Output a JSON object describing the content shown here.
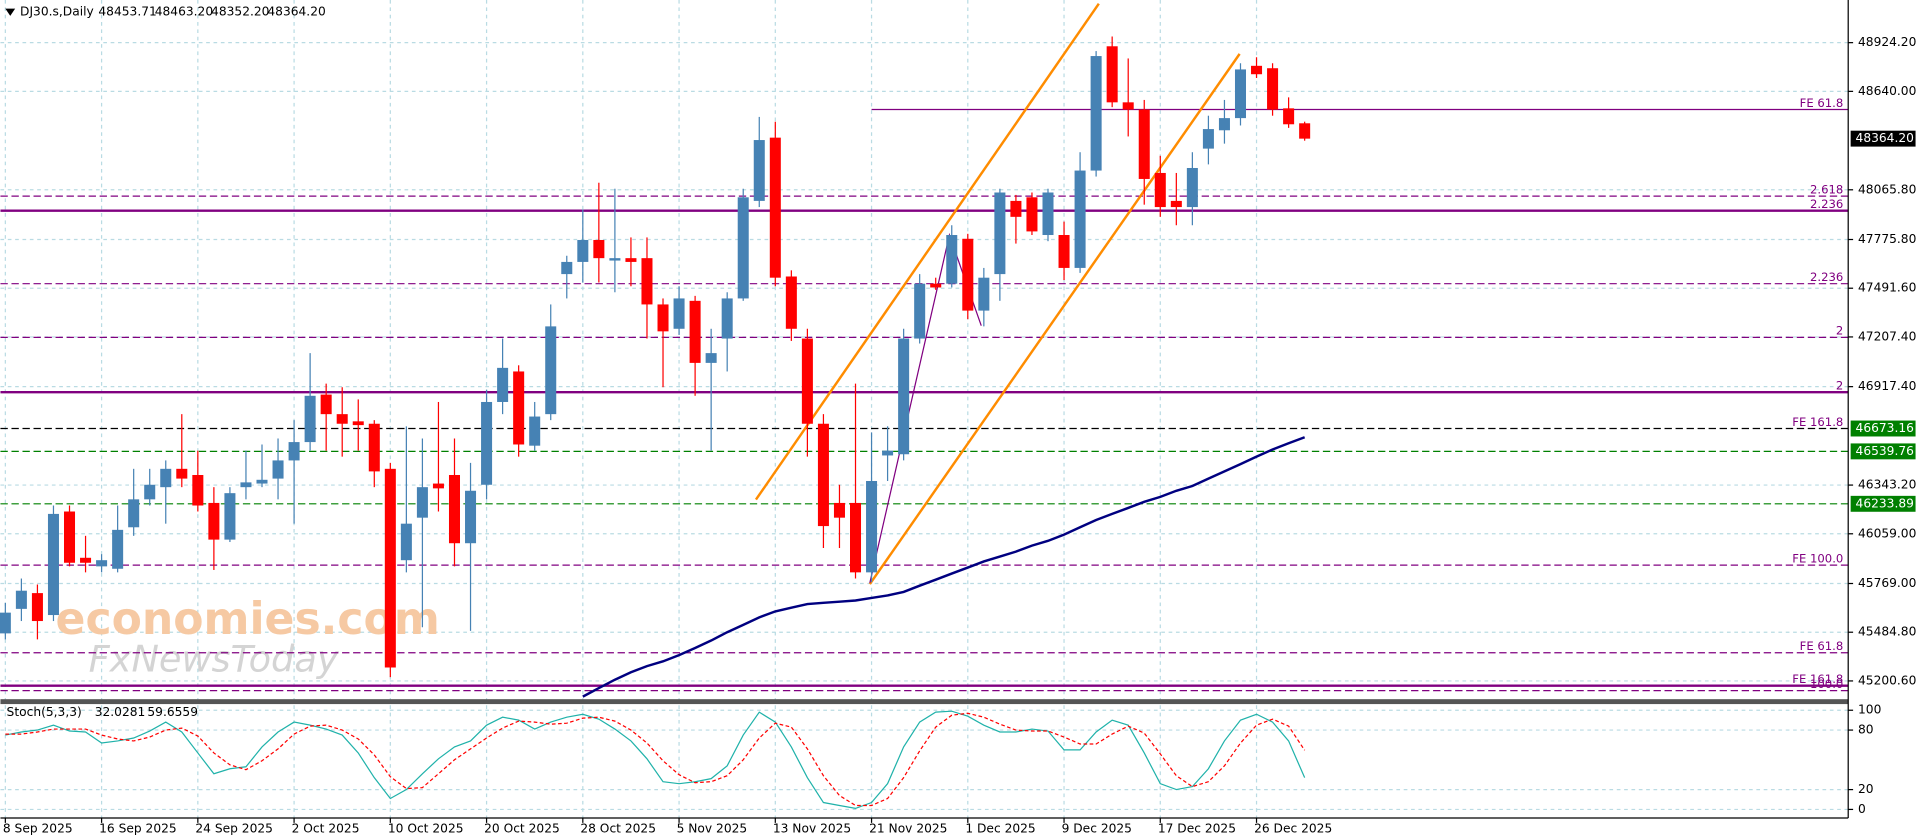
{
  "chart_data": {
    "type": "candlestick",
    "symbol": "DJ30.s,Daily",
    "ohlc_labels": [
      "48453.71",
      "48463.20",
      "48352.20",
      "48364.20"
    ],
    "categories": [
      "8 Sep 2025",
      null,
      null,
      null,
      null,
      null,
      "16 Sep 2025",
      null,
      null,
      null,
      null,
      null,
      "24 Sep 2025",
      null,
      null,
      null,
      null,
      null,
      "2 Oct 2025",
      null,
      null,
      null,
      null,
      null,
      "10 Oct 2025",
      null,
      null,
      null,
      null,
      null,
      "20 Oct 2025",
      null,
      null,
      null,
      null,
      null,
      "28 Oct 2025",
      null,
      null,
      null,
      null,
      null,
      "5 Nov 2025",
      null,
      null,
      null,
      null,
      null,
      "13 Nov 2025",
      null,
      null,
      null,
      null,
      null,
      "21 Nov 2025",
      null,
      null,
      null,
      null,
      null,
      "1 Dec 2025",
      null,
      null,
      null,
      null,
      null,
      "9 Dec 2025",
      null,
      null,
      null,
      null,
      null,
      "17 Dec 2025",
      null,
      null,
      null,
      null,
      null,
      "26 Dec 2025",
      null,
      null,
      null
    ],
    "open": [
      45478,
      45621,
      45713,
      45585,
      46189,
      45919,
      45869,
      45855,
      46097,
      46260,
      46331,
      46438,
      46402,
      46239,
      46025,
      46331,
      46352,
      46381,
      46487,
      46594,
      46871,
      46757,
      46715,
      46701,
      46438,
      45905,
      46153,
      46352,
      46402,
      46004,
      46345,
      46828,
      47006,
      46573,
      46757,
      47574,
      47645,
      47773,
      47653,
      47667,
      47667,
      47397,
      47255,
      47418,
      47056,
      47198,
      47432,
      48001,
      48370,
      47560,
      47198,
      46701,
      46239,
      46239,
      45834,
      46516,
      46523,
      47198,
      47518,
      47518,
      47780,
      47361,
      47574,
      48001,
      48022,
      47802,
      47802,
      47610,
      48178,
      48903,
      48576,
      48534,
      48164,
      48001,
      47965,
      48306,
      48413,
      48484,
      48789,
      48775,
      48541,
      48453.71
    ],
    "high": [
      45656,
      45798,
      45763,
      46224,
      46224,
      46047,
      45940,
      46224,
      46438,
      46438,
      46487,
      46757,
      46544,
      46331,
      46331,
      46544,
      46580,
      46615,
      46722,
      47113,
      46935,
      46914,
      46843,
      46722,
      46473,
      46686,
      46615,
      46828,
      46615,
      46473,
      46899,
      47198,
      47042,
      46828,
      47397,
      47681,
      47951,
      48107,
      48072,
      47788,
      47788,
      47432,
      47503,
      47447,
      47255,
      47468,
      48072,
      48491,
      48463,
      47596,
      47255,
      46757,
      46345,
      46935,
      46651,
      46686,
      47255,
      47574,
      47553,
      47859,
      47809,
      47610,
      48072,
      48036,
      48050,
      48072,
      47880,
      48285,
      48875,
      48960,
      48832,
      48590,
      48264,
      48164,
      48285,
      48498,
      48590,
      48804,
      48839,
      48804,
      48605,
      48463.2
    ],
    "low": [
      45443,
      45550,
      45443,
      45550,
      45869,
      45834,
      45834,
      45834,
      46047,
      46224,
      46118,
      46331,
      46189,
      45848,
      46011,
      46260,
      46331,
      46260,
      46118,
      46544,
      46544,
      46509,
      46544,
      46331,
      45223,
      45834,
      45514,
      46189,
      45869,
      45493,
      46260,
      46757,
      46509,
      46544,
      46722,
      47432,
      47525,
      47525,
      47468,
      47503,
      47198,
      46914,
      47219,
      46864,
      46544,
      47006,
      47418,
      47965,
      47503,
      47184,
      46509,
      45976,
      45976,
      45798,
      45777,
      46367,
      46487,
      47169,
      47482,
      47496,
      47311,
      47269,
      47418,
      47752,
      47802,
      47766,
      47539,
      47581,
      48143,
      48548,
      48377,
      47979,
      47908,
      47859,
      47859,
      48214,
      48335,
      48441,
      48718,
      48498,
      48427,
      48352.2
    ],
    "close": [
      45599,
      45727,
      45550,
      46175,
      45890,
      45890,
      45905,
      46082,
      46260,
      46345,
      46438,
      46381,
      46224,
      46025,
      46296,
      46359,
      46374,
      46487,
      46594,
      46864,
      46757,
      46701,
      46693,
      46423,
      45279,
      46118,
      46331,
      46324,
      46004,
      46310,
      46828,
      47027,
      46580,
      46743,
      47269,
      47645,
      47773,
      47667,
      47667,
      47645,
      47397,
      47240,
      47432,
      47056,
      47113,
      47432,
      48022,
      48356,
      47553,
      47255,
      46701,
      46104,
      46153,
      45834,
      46367,
      46544,
      47198,
      47518,
      47496,
      47802,
      47361,
      47553,
      48050,
      47908,
      47823,
      48050,
      47610,
      48178,
      48846,
      48576,
      48534,
      48129,
      47965,
      47965,
      48193,
      48420,
      48484,
      48768,
      48740,
      48534,
      48448,
      48364.2
    ],
    "up_color": "#4682b4",
    "down_color": "#ff0000",
    "ylim": [
      45087,
      49173
    ],
    "yticks": [
      {
        "value": 48924.2,
        "label": "48924.20"
      },
      {
        "value": 48640,
        "label": "48640.00"
      },
      {
        "value": 48065.8,
        "label": "48065.80"
      },
      {
        "value": 47775.8,
        "label": "47775.80"
      },
      {
        "value": 47491.6,
        "label": "47491.60"
      },
      {
        "value": 47207.4,
        "label": "47207.40"
      },
      {
        "value": 46917.4,
        "label": "46917.40"
      },
      {
        "value": 46343.2,
        "label": "46343.20"
      },
      {
        "value": 46059,
        "label": "46059.00"
      },
      {
        "value": 45769,
        "label": "45769.00"
      },
      {
        "value": 45484.8,
        "label": "45484.80"
      },
      {
        "value": 45200.6,
        "label": "45200.60"
      }
    ],
    "grid": true,
    "ma": {
      "color": "#000080",
      "values": [
        null,
        null,
        null,
        null,
        null,
        null,
        null,
        null,
        null,
        null,
        null,
        null,
        null,
        null,
        null,
        null,
        null,
        null,
        null,
        null,
        null,
        null,
        null,
        null,
        null,
        null,
        null,
        null,
        null,
        null,
        null,
        null,
        null,
        null,
        null,
        null,
        45109,
        45159,
        45208,
        45251,
        45287,
        45315,
        45351,
        45393,
        45436,
        45485,
        45528,
        45571,
        45606,
        45628,
        45649,
        45656,
        45663,
        45670,
        45685,
        45699,
        45720,
        45756,
        45791,
        45827,
        45862,
        45898,
        45926,
        45955,
        45990,
        46018,
        46054,
        46097,
        46139,
        46175,
        46210,
        46246,
        46274,
        46310,
        46338,
        46381,
        46423,
        46466,
        46509,
        46551,
        46587,
        46622
      ]
    },
    "levels": [
      {
        "value": 48534,
        "label": "FE 61.8",
        "color": "#800080",
        "style": "solid",
        "start_index": 54
      },
      {
        "value": 48029,
        "label": "2.618",
        "color": "#800080",
        "style": "dashed"
      },
      {
        "value": 47944,
        "label": "2.236",
        "color": "#800080",
        "style": "thick"
      },
      {
        "value": 47518,
        "label": "2.236",
        "color": "#800080",
        "style": "dashed"
      },
      {
        "value": 47205,
        "label": "2",
        "color": "#800080",
        "style": "dashed"
      },
      {
        "value": 46885,
        "label": "2",
        "color": "#800080",
        "style": "thick"
      },
      {
        "value": 46673.16,
        "label": "FE 161.8",
        "color": "#000000",
        "style": "dashed",
        "tag": "#008000"
      },
      {
        "value": 46539.76,
        "color": "#008000",
        "style": "dashed",
        "tag": "#008000"
      },
      {
        "value": 46233.89,
        "color": "#008000",
        "style": "dashed",
        "tag": "#008000"
      },
      {
        "value": 45876,
        "label": "FE 100.0",
        "color": "#800080",
        "style": "dashed"
      },
      {
        "value": 45365,
        "label": "FE 61.8",
        "color": "#800080",
        "style": "dashed"
      },
      {
        "value": 45173,
        "label": "FE 161.8",
        "color": "#800080",
        "style": "thick"
      },
      {
        "value": 45144,
        "label": "100.0",
        "color": "#800080",
        "style": "dashed"
      }
    ],
    "current_price": {
      "value": 48364.2,
      "label": "48364.20"
    },
    "watermark": [
      "economies.com",
      "FxNewsToday"
    ],
    "indicator": {
      "title": "Stoch(5,3,3)",
      "ylim": [
        -8.6,
        106.2
      ],
      "yticks": [
        100,
        80,
        20,
        0
      ],
      "main": {
        "color": "#20b2aa",
        "values": [
          75,
          78,
          80,
          85,
          79,
          78,
          67,
          69,
          72,
          79,
          88,
          78,
          57,
          36,
          41,
          43,
          63,
          78,
          88,
          85,
          81,
          75,
          57,
          32,
          11,
          20,
          36,
          51,
          63,
          69,
          85,
          93,
          90,
          81,
          88,
          93,
          96,
          91,
          81,
          69,
          51,
          28,
          26,
          28,
          31,
          44,
          75,
          98,
          88,
          63,
          32,
          7,
          4,
          1,
          7,
          26,
          63,
          88,
          98,
          99,
          94,
          85,
          78,
          78,
          81,
          79,
          60,
          60,
          78,
          90,
          85,
          57,
          26,
          20,
          23,
          41,
          69,
          90,
          96,
          88,
          69,
          32.0281
        ]
      },
      "signal": {
        "color": "#ff0000",
        "values": [
          76,
          76,
          78,
          81,
          81,
          81,
          75,
          71,
          69,
          73,
          80,
          82,
          74,
          57,
          45,
          40,
          49,
          61,
          76,
          84,
          85,
          80,
          71,
          55,
          33,
          21,
          22,
          36,
          50,
          61,
          72,
          82,
          89,
          88,
          86,
          87,
          92,
          93,
          89,
          80,
          67,
          49,
          35,
          27,
          28,
          34,
          50,
          72,
          87,
          83,
          61,
          34,
          14,
          4,
          4,
          11,
          32,
          59,
          83,
          95,
          97,
          93,
          86,
          80,
          79,
          79,
          73,
          66,
          66,
          76,
          84,
          77,
          56,
          34,
          23,
          28,
          44,
          67,
          85,
          91,
          84,
          59.6559
        ]
      }
    }
  }
}
